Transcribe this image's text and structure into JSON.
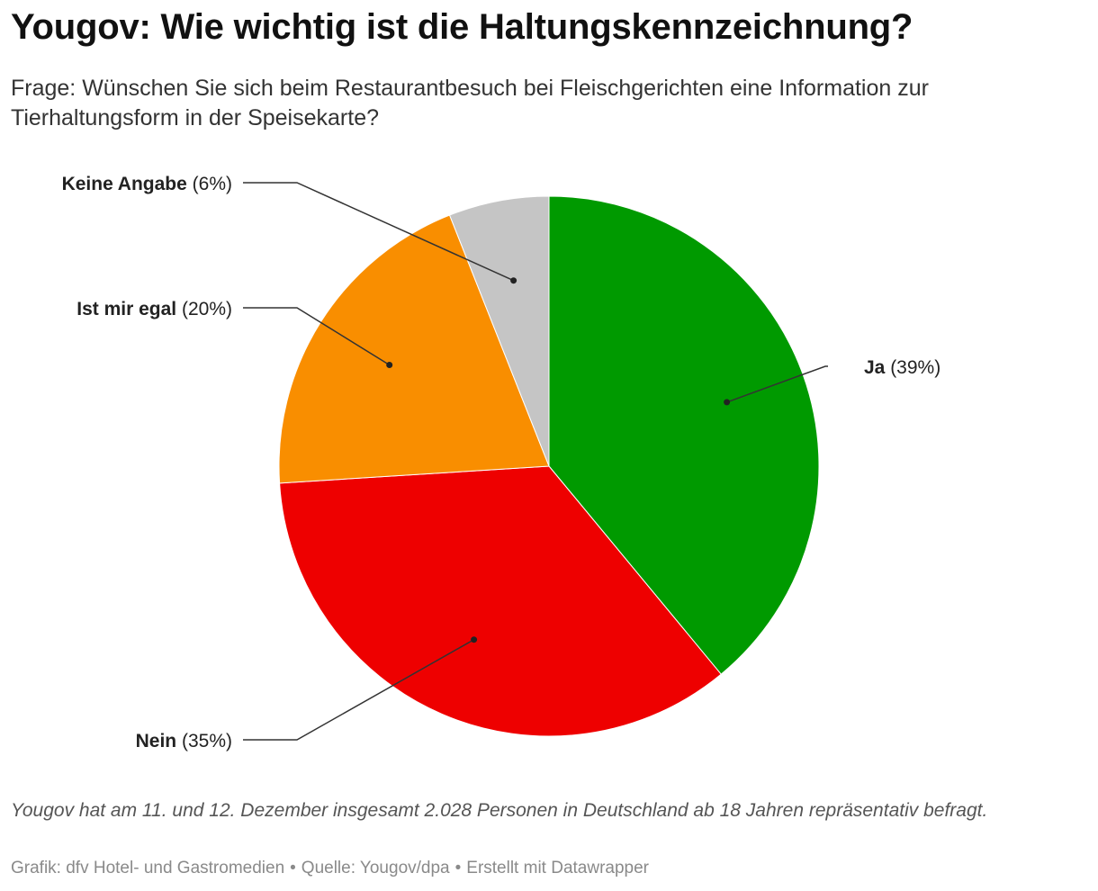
{
  "title": "Yougov: Wie wichtig ist die Haltungskennzeichnung?",
  "subtitle": "Frage: Wünschen Sie sich beim Restaurantbesuch bei Fleischgerichten eine Information zur Tierhaltungsform in der Speisekarte?",
  "chart_data": {
    "type": "pie",
    "slices": [
      {
        "label": "Ja",
        "value": 39,
        "display": "(39%)",
        "color": "#009a00"
      },
      {
        "label": "Nein",
        "value": 35,
        "display": "(35%)",
        "color": "#ee0000"
      },
      {
        "label": "Ist mir egal",
        "value": 20,
        "display": "(20%)",
        "color": "#f98e00"
      },
      {
        "label": "Keine Angabe",
        "value": 6,
        "display": "(6%)",
        "color": "#c5c5c5"
      }
    ]
  },
  "notes": "Yougov hat am 11. und 12. Dezember insgesamt 2.028 Personen in Deutschland ab 18 Jahren repräsentativ befragt.",
  "byline": {
    "grafik": "Grafik: dfv Hotel- und Gastromedien",
    "quelle": "Quelle: Yougov/dpa",
    "tool": "Erstellt mit Datawrapper",
    "separator": "•"
  }
}
